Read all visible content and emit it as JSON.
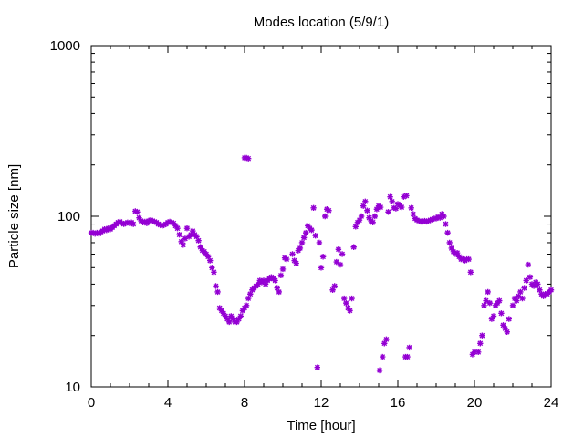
{
  "chart_data": {
    "type": "scatter",
    "title": "Modes location (5/9/1)",
    "xlabel": "Time [hour]",
    "ylabel": "Particle size [nm]",
    "xlim": [
      0,
      24
    ],
    "ylim": [
      10,
      1000
    ],
    "yscale": "log",
    "xticks": [
      "0",
      "4",
      "8",
      "12",
      "16",
      "20",
      "24"
    ],
    "yticks": [
      "10",
      "100",
      "1000"
    ],
    "grid": false,
    "legend": "none",
    "marker_color": "#9400d3",
    "series": [
      {
        "points": [
          [
            0.0,
            80
          ],
          [
            0.1,
            80
          ],
          [
            0.2,
            79
          ],
          [
            0.3,
            80
          ],
          [
            0.4,
            79
          ],
          [
            0.5,
            81
          ],
          [
            0.6,
            82
          ],
          [
            0.7,
            84
          ],
          [
            0.8,
            83
          ],
          [
            0.9,
            85
          ],
          [
            1.0,
            84
          ],
          [
            1.1,
            86
          ],
          [
            1.2,
            88
          ],
          [
            1.3,
            90
          ],
          [
            1.4,
            92
          ],
          [
            1.5,
            93
          ],
          [
            1.6,
            91
          ],
          [
            1.7,
            90
          ],
          [
            1.8,
            91
          ],
          [
            1.9,
            92
          ],
          [
            2.0,
            91
          ],
          [
            2.1,
            92
          ],
          [
            2.2,
            90
          ],
          [
            2.3,
            107
          ],
          [
            2.4,
            106
          ],
          [
            2.5,
            98
          ],
          [
            2.6,
            94
          ],
          [
            2.7,
            92
          ],
          [
            2.8,
            93
          ],
          [
            2.9,
            91
          ],
          [
            3.0,
            94
          ],
          [
            3.1,
            95
          ],
          [
            3.2,
            94
          ],
          [
            3.3,
            93
          ],
          [
            3.4,
            92
          ],
          [
            3.5,
            90
          ],
          [
            3.6,
            89
          ],
          [
            3.7,
            88
          ],
          [
            3.8,
            89
          ],
          [
            3.9,
            90
          ],
          [
            4.0,
            92
          ],
          [
            4.1,
            93
          ],
          [
            4.2,
            92
          ],
          [
            4.3,
            91
          ],
          [
            4.4,
            88
          ],
          [
            4.5,
            85
          ],
          [
            4.6,
            78
          ],
          [
            4.7,
            71
          ],
          [
            4.8,
            68
          ],
          [
            4.9,
            74
          ],
          [
            5.0,
            85
          ],
          [
            5.1,
            76
          ],
          [
            5.2,
            78
          ],
          [
            5.3,
            82
          ],
          [
            5.4,
            78
          ],
          [
            5.5,
            76
          ],
          [
            5.6,
            72
          ],
          [
            5.7,
            66
          ],
          [
            5.8,
            63
          ],
          [
            5.9,
            62
          ],
          [
            6.0,
            60
          ],
          [
            6.1,
            58
          ],
          [
            6.2,
            55
          ],
          [
            6.3,
            50
          ],
          [
            6.4,
            47
          ],
          [
            6.5,
            39
          ],
          [
            6.6,
            36
          ],
          [
            6.7,
            29
          ],
          [
            6.8,
            28
          ],
          [
            6.9,
            27
          ],
          [
            7.0,
            26
          ],
          [
            7.1,
            25
          ],
          [
            7.2,
            24
          ],
          [
            7.3,
            26
          ],
          [
            7.4,
            25
          ],
          [
            7.5,
            24
          ],
          [
            7.6,
            24
          ],
          [
            7.7,
            25
          ],
          [
            7.8,
            26
          ],
          [
            7.9,
            28
          ],
          [
            8.0,
            29
          ],
          [
            8.1,
            30
          ],
          [
            8.2,
            33
          ],
          [
            8.3,
            35
          ],
          [
            8.4,
            37
          ],
          [
            8.5,
            38
          ],
          [
            8.6,
            39
          ],
          [
            8.7,
            40
          ],
          [
            8.8,
            42
          ],
          [
            8.9,
            41
          ],
          [
            9.0,
            42
          ],
          [
            9.1,
            40
          ],
          [
            9.2,
            42
          ],
          [
            9.3,
            43
          ],
          [
            9.4,
            44
          ],
          [
            9.5,
            43
          ],
          [
            9.6,
            42
          ],
          [
            9.7,
            38
          ],
          [
            9.8,
            36
          ],
          [
            9.9,
            45
          ],
          [
            10.0,
            49
          ],
          [
            10.1,
            57
          ],
          [
            10.2,
            56
          ],
          [
            10.5,
            60
          ],
          [
            10.6,
            55
          ],
          [
            10.7,
            53
          ],
          [
            10.8,
            63
          ],
          [
            10.9,
            65
          ],
          [
            11.0,
            70
          ],
          [
            11.1,
            75
          ],
          [
            11.2,
            80
          ],
          [
            11.3,
            88
          ],
          [
            11.4,
            85
          ],
          [
            11.5,
            83
          ],
          [
            11.6,
            112
          ],
          [
            11.7,
            77
          ],
          [
            11.8,
            13
          ],
          [
            11.9,
            70
          ],
          [
            12.0,
            50
          ],
          [
            12.1,
            58
          ],
          [
            12.2,
            100
          ],
          [
            12.3,
            110
          ],
          [
            12.4,
            108
          ],
          [
            12.6,
            37
          ],
          [
            12.7,
            39
          ],
          [
            12.8,
            54
          ],
          [
            12.9,
            64
          ],
          [
            13.0,
            52
          ],
          [
            13.1,
            60
          ],
          [
            13.2,
            33
          ],
          [
            13.3,
            31
          ],
          [
            13.4,
            29
          ],
          [
            13.5,
            28
          ],
          [
            13.6,
            33
          ],
          [
            13.7,
            66
          ],
          [
            13.8,
            87
          ],
          [
            13.9,
            92
          ],
          [
            14.0,
            95
          ],
          [
            14.1,
            100
          ],
          [
            14.2,
            115
          ],
          [
            14.3,
            122
          ],
          [
            14.4,
            108
          ],
          [
            14.5,
            98
          ],
          [
            14.6,
            94
          ],
          [
            14.7,
            92
          ],
          [
            14.8,
            100
          ],
          [
            14.9,
            110
          ],
          [
            15.0,
            115
          ],
          [
            15.05,
            12.5
          ],
          [
            15.1,
            113
          ],
          [
            15.2,
            15
          ],
          [
            15.3,
            18
          ],
          [
            15.4,
            19
          ],
          [
            15.5,
            106
          ],
          [
            15.6,
            130
          ],
          [
            15.7,
            122
          ],
          [
            15.8,
            112
          ],
          [
            15.9,
            111
          ],
          [
            16.0,
            118
          ],
          [
            16.1,
            116
          ],
          [
            16.2,
            113
          ],
          [
            16.3,
            130
          ],
          [
            16.4,
            15
          ],
          [
            16.45,
            132
          ],
          [
            16.5,
            15
          ],
          [
            16.6,
            17
          ],
          [
            16.7,
            112
          ],
          [
            16.8,
            103
          ],
          [
            16.9,
            97
          ],
          [
            17.0,
            95
          ],
          [
            17.1,
            94
          ],
          [
            17.2,
            93
          ],
          [
            17.3,
            93
          ],
          [
            17.4,
            94
          ],
          [
            17.5,
            93
          ],
          [
            17.6,
            94
          ],
          [
            17.7,
            95
          ],
          [
            17.8,
            96
          ],
          [
            17.9,
            97
          ],
          [
            18.0,
            97
          ],
          [
            18.1,
            99
          ],
          [
            18.2,
            98
          ],
          [
            18.3,
            103
          ],
          [
            18.4,
            100
          ],
          [
            18.5,
            90
          ],
          [
            18.6,
            80
          ],
          [
            18.7,
            70
          ],
          [
            18.8,
            65
          ],
          [
            18.9,
            62
          ],
          [
            19.0,
            60
          ],
          [
            19.1,
            61
          ],
          [
            19.2,
            58
          ],
          [
            19.3,
            56
          ],
          [
            19.4,
            56
          ],
          [
            19.5,
            55
          ],
          [
            19.6,
            56
          ],
          [
            19.7,
            56
          ],
          [
            19.8,
            47
          ],
          [
            19.9,
            15.5
          ],
          [
            20.0,
            16
          ],
          [
            20.2,
            16
          ],
          [
            20.3,
            18
          ],
          [
            20.4,
            20
          ],
          [
            20.5,
            30
          ],
          [
            20.6,
            32
          ],
          [
            20.7,
            36
          ],
          [
            20.8,
            31
          ],
          [
            20.9,
            25
          ],
          [
            21.0,
            26
          ],
          [
            21.1,
            30
          ],
          [
            21.2,
            31
          ],
          [
            21.3,
            32
          ],
          [
            21.4,
            27
          ],
          [
            21.5,
            23
          ],
          [
            21.6,
            22
          ],
          [
            21.7,
            21
          ],
          [
            21.8,
            25
          ],
          [
            22.0,
            30
          ],
          [
            22.1,
            33
          ],
          [
            22.2,
            32
          ],
          [
            22.3,
            34
          ],
          [
            22.4,
            36
          ],
          [
            22.5,
            33
          ],
          [
            22.6,
            38
          ],
          [
            22.7,
            42
          ],
          [
            22.8,
            52
          ],
          [
            22.9,
            44
          ],
          [
            23.0,
            40
          ],
          [
            23.1,
            39
          ],
          [
            23.2,
            41
          ],
          [
            23.3,
            40
          ],
          [
            23.4,
            37
          ],
          [
            23.5,
            35
          ],
          [
            23.6,
            34
          ],
          [
            23.7,
            35
          ],
          [
            23.8,
            35
          ],
          [
            23.9,
            36
          ],
          [
            24.0,
            37
          ],
          [
            8.0,
            220
          ],
          [
            8.1,
            220
          ],
          [
            8.2,
            218
          ]
        ]
      }
    ]
  }
}
